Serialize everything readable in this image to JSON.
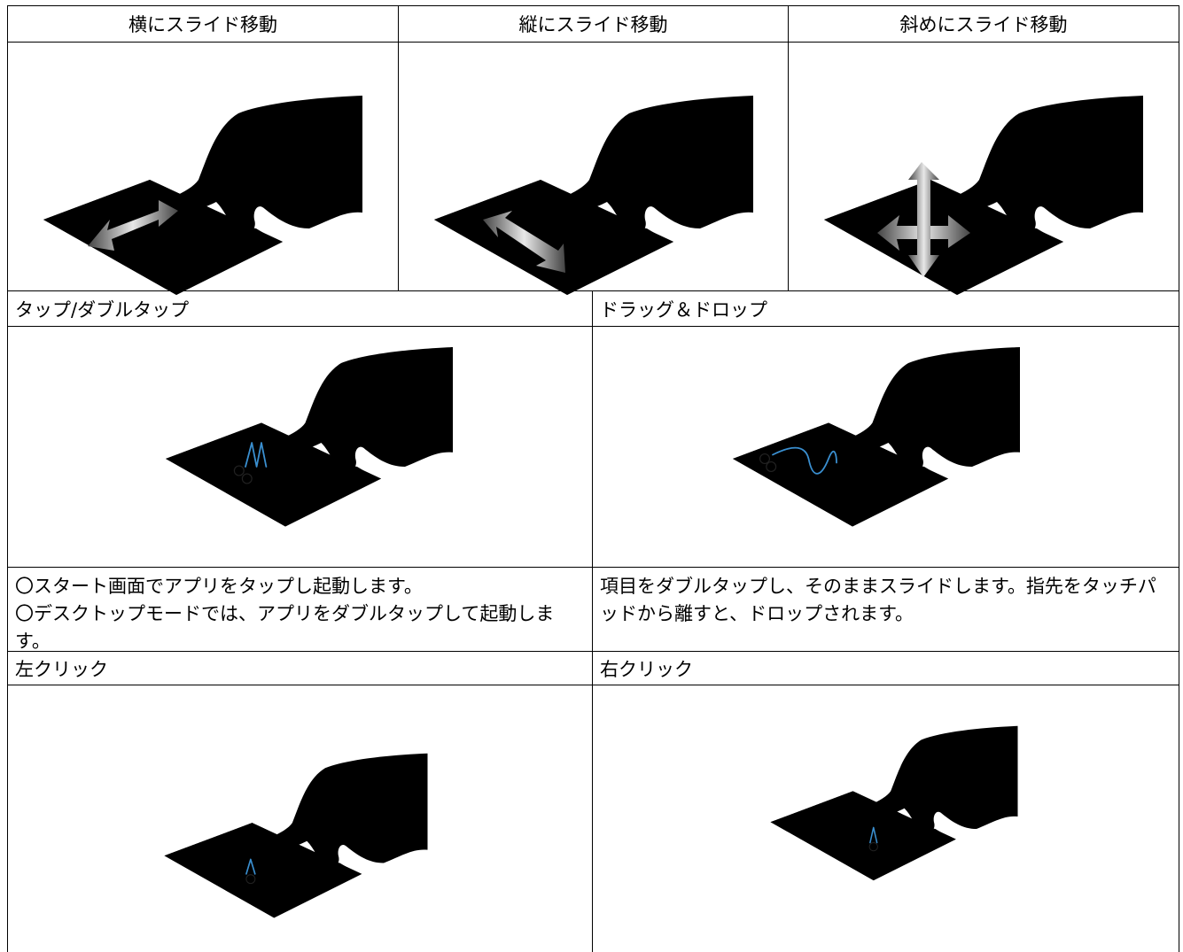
{
  "table": {
    "row1": {
      "headers": [
        "横にスライド移動",
        "縦にスライド移動",
        "斜めにスライド移動"
      ]
    },
    "row2": {
      "headers": [
        "タップ/ダブルタップ",
        "ドラッグ＆ドロップ"
      ],
      "descriptions": [
        [
          "〇スタート画面でアプリをタップし起動します。",
          "〇デスクトップモードでは、アプリをダブルタップして起動します。"
        ],
        [
          "項目をダブルタップし、そのままスライドします。指先をタッチパッドから離すと、ドロップされます。"
        ]
      ]
    },
    "row3": {
      "headers": [
        "左クリック",
        "右クリック"
      ]
    }
  }
}
